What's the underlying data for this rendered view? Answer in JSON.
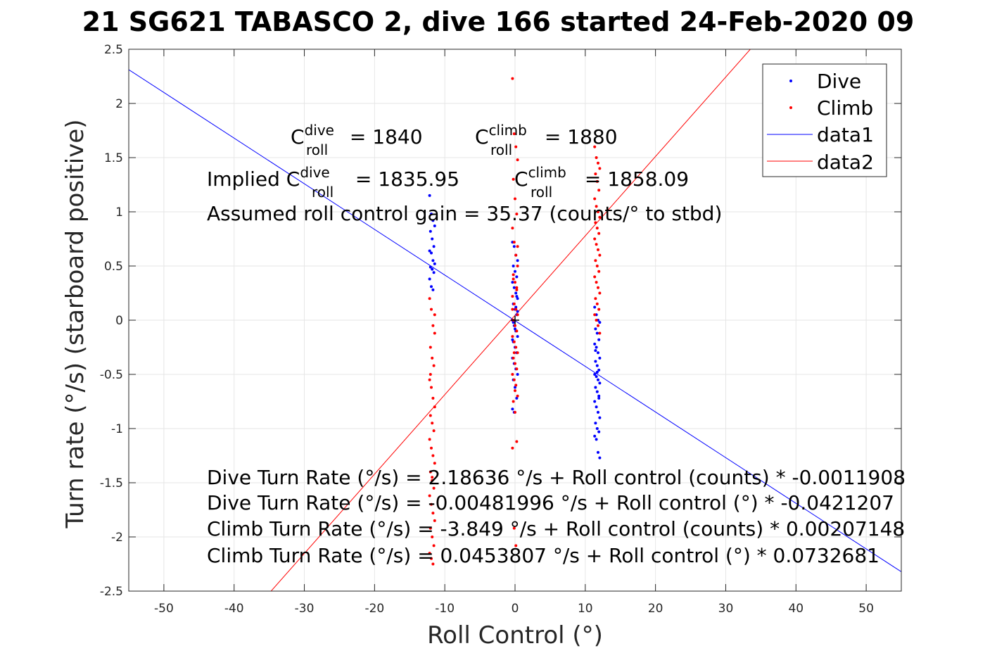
{
  "chart_data": {
    "type": "scatter",
    "title": "21 SG621 TABASCO 2, dive 166 started 24-Feb-2020 09",
    "xlabel": "Roll Control (°)",
    "ylabel": "Turn rate (°/s) (starboard positive)",
    "xlim": [
      -55,
      55
    ],
    "ylim": [
      -2.5,
      2.5
    ],
    "xticks": [
      -50,
      -40,
      -30,
      -20,
      -10,
      0,
      10,
      20,
      30,
      40,
      50
    ],
    "yticks": [
      -2.5,
      -2,
      -1.5,
      -1,
      -0.5,
      0,
      0.5,
      1,
      1.5,
      2,
      2.5
    ],
    "xtick_labels": [
      "-50",
      "-40",
      "-30",
      "-20",
      "-10",
      "0",
      "10",
      "20",
      "30",
      "40",
      "50"
    ],
    "ytick_labels": [
      "-2.5",
      "-2",
      "-1.5",
      "-1",
      "-0.5",
      "0",
      "0.5",
      "1",
      "1.5",
      "2",
      "2.5"
    ],
    "grid": true,
    "legend_position": "top-right",
    "legend": [
      "Dive",
      "Climb",
      "data1",
      "data2"
    ],
    "colors": {
      "dive": "#0000ff",
      "climb": "#ff0000"
    },
    "series": [
      {
        "name": "Dive",
        "kind": "points",
        "clusters": [
          {
            "x": -11.8,
            "y_values": [
              1.15,
              0.98,
              0.92,
              0.87,
              0.82,
              0.75,
              0.68,
              0.64,
              0.62,
              0.55,
              0.52,
              0.49,
              0.47,
              0.44,
              0.38,
              0.31,
              0.28
            ]
          },
          {
            "x": 0.0,
            "y_values": [
              0.72,
              0.68,
              0.6,
              0.55,
              0.5,
              0.45,
              0.4,
              0.35,
              0.3,
              0.25,
              0.2,
              0.15,
              0.1,
              0.05,
              0.0,
              -0.05,
              -0.1,
              -0.15,
              -0.2,
              -0.25,
              -0.3,
              -0.35,
              -0.4,
              -0.45,
              -0.5,
              -0.55,
              -0.62,
              -0.72,
              -0.82,
              -0.85,
              0.12,
              0.08,
              -0.02,
              -0.08,
              0.22,
              -0.18
            ]
          },
          {
            "x": 11.7,
            "y_values": [
              0.12,
              0.05,
              0.0,
              -0.02,
              -0.08,
              -0.12,
              -0.18,
              -0.22,
              -0.25,
              -0.3,
              -0.35,
              -0.38,
              -0.42,
              -0.46,
              -0.5,
              -0.52,
              -0.55,
              -0.58,
              -0.62,
              -0.66,
              -0.7,
              -0.75,
              -0.8,
              -0.85,
              -0.9,
              -0.95,
              -1.0,
              -1.03,
              -1.07,
              -1.1,
              -1.22,
              -1.27,
              -0.28,
              -0.48,
              -0.72
            ]
          }
        ]
      },
      {
        "name": "Climb",
        "kind": "points",
        "clusters": [
          {
            "x": -11.8,
            "y_values": [
              0.2,
              0.1,
              -0.05,
              -0.12,
              -0.25,
              -0.35,
              -0.42,
              -0.55,
              -0.62,
              -0.72,
              -0.8,
              -0.88,
              -0.95,
              -1.02,
              -1.1,
              -1.18,
              -1.25,
              -1.32,
              -1.4,
              -1.48,
              -1.55,
              -1.62,
              -1.7,
              -1.78,
              -1.85,
              -1.92,
              -2.0,
              -2.08,
              -2.15,
              -2.2,
              -2.25,
              0.05,
              -0.5,
              -1.45
            ]
          },
          {
            "x": 0.0,
            "y_values": [
              2.23,
              1.72,
              1.6,
              1.48,
              1.3,
              1.12,
              0.98,
              0.85,
              0.72,
              0.6,
              0.5,
              0.42,
              0.35,
              0.28,
              0.22,
              0.15,
              0.1,
              0.05,
              0.0,
              -0.05,
              -0.1,
              -0.15,
              -0.2,
              -0.25,
              -0.3,
              -0.35,
              -0.4,
              -0.45,
              -0.5,
              -0.55,
              -0.6,
              -0.7,
              -0.75,
              -0.85,
              -1.12,
              -1.18,
              -1.92,
              -2.08,
              0.68,
              0.38,
              -0.65,
              0.3,
              0.1,
              -0.3
            ]
          },
          {
            "x": 11.7,
            "y_values": [
              1.6,
              1.5,
              1.45,
              1.4,
              1.35,
              1.28,
              1.2,
              1.12,
              1.05,
              1.0,
              0.95,
              0.9,
              0.85,
              0.8,
              0.75,
              0.7,
              0.65,
              0.6,
              0.55,
              0.5,
              0.45,
              0.4,
              0.35,
              0.3,
              0.25,
              0.2,
              0.15,
              0.1,
              0.05,
              0.0,
              -0.05,
              -0.12
            ]
          }
        ]
      },
      {
        "name": "data1",
        "kind": "line",
        "color": "#0000ff",
        "x": [
          -55,
          55
        ],
        "y": [
          2.3118,
          -2.3215
        ]
      },
      {
        "name": "data2",
        "kind": "line",
        "color": "#ff0000",
        "x": [
          -35,
          35
        ],
        "y": [
          -2.5191,
          2.6098
        ]
      }
    ],
    "annotations": {
      "c_dive": {
        "base": "C",
        "sup": "dive",
        "sub": "roll",
        "rest": " = 1840"
      },
      "c_climb": {
        "base": "C",
        "sup": "climb",
        "sub": "roll",
        "rest": " = 1880"
      },
      "implied_dive": {
        "prefix": "Implied ",
        "base": "C",
        "sup": "dive",
        "sub": "roll",
        "rest": " = 1835.95"
      },
      "implied_climb": {
        "base": "C",
        "sup": "climb",
        "sub": "roll",
        "rest": " = 1858.09"
      },
      "gain": "Assumed roll control gain = 35.37 (counts/° to stbd)",
      "equations": [
        "Dive Turn Rate (°/s) = 2.18636 °/s + Roll control (counts) * -0.0011908",
        "Dive Turn Rate (°/s) = -0.00481996 °/s + Roll control (°) * -0.0421207",
        "Climb Turn Rate (°/s) = -3.849 °/s + Roll control (counts) * 0.00207148",
        "Climb Turn Rate (°/s) = 0.0453807 °/s + Roll control (°) * 0.0732681"
      ]
    }
  }
}
